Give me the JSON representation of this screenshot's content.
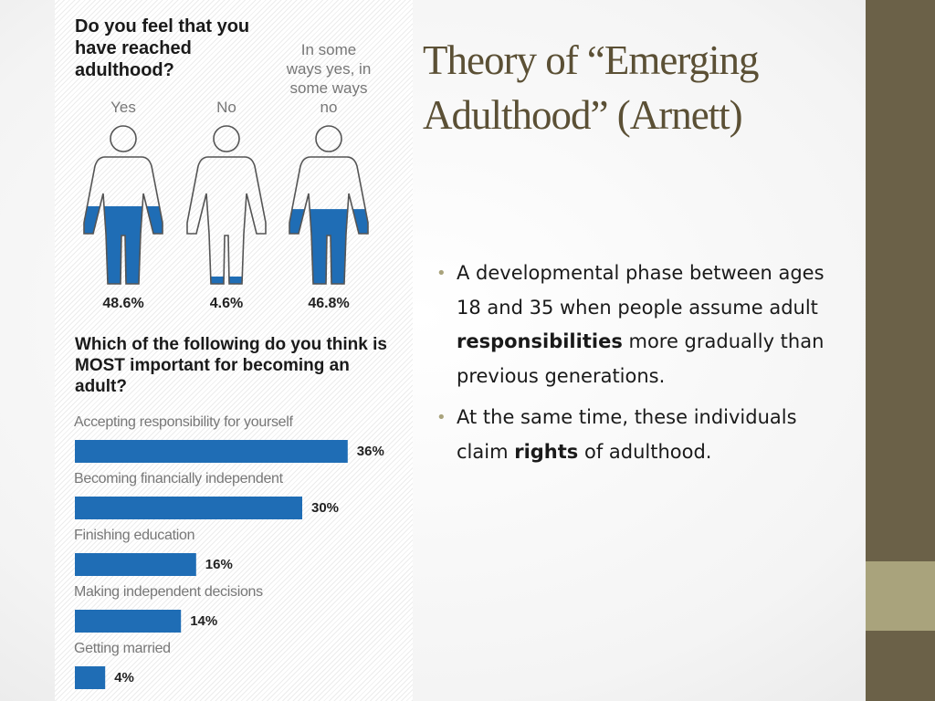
{
  "slide": {
    "title": "Theory of “Emerging Adulthood” (Arnett)",
    "bullets": [
      [
        "A developmental phase between ages 18 and 35 when people assume adult ",
        "responsibilities",
        " more gradually than previous generations."
      ],
      [
        "At the same time, these individuals claim ",
        "rights",
        " of adulthood."
      ]
    ]
  },
  "chart_data": [
    {
      "type": "pictogram",
      "title": "Do you feel that you have reached adulthood?",
      "categories": [
        "Yes",
        "No",
        "In some ways yes, in some ways no"
      ],
      "values": [
        48.6,
        4.6,
        46.8
      ],
      "value_labels": [
        "48.6%",
        "4.6%",
        "46.8%"
      ],
      "color": "#1f6db5"
    },
    {
      "type": "bar",
      "title": "Which of the following do you think is MOST important for becoming an adult?",
      "categories": [
        "Accepting responsibility for yourself",
        "Becoming financially independent",
        "Finishing education",
        "Making independent decisions",
        "Getting married"
      ],
      "values": [
        36,
        30,
        16,
        14,
        4
      ],
      "value_labels": [
        "36%",
        "30%",
        "16%",
        "14%",
        "4%"
      ],
      "color": "#1f6db5"
    }
  ]
}
